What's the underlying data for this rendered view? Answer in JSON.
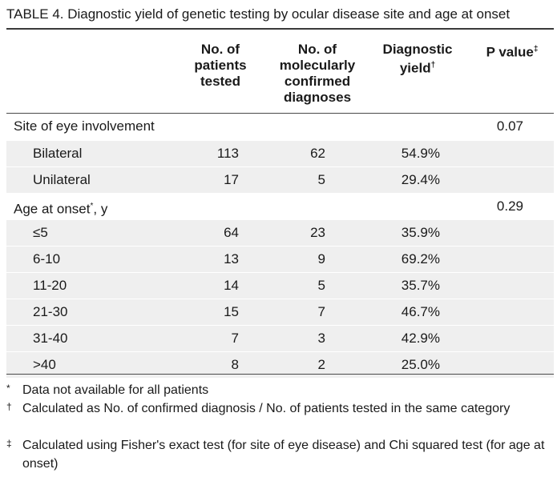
{
  "caption": "TABLE 4.  Diagnostic yield of genetic testing by ocular disease site and age at onset",
  "headers": {
    "col1": [
      "No. of",
      "patients",
      "tested"
    ],
    "col2": [
      "No. of",
      "molecularly",
      "confirmed",
      "diagnoses"
    ],
    "col3_line1": "Diagnostic",
    "col3_line2": "yield",
    "col3_mark": "†",
    "col4": "P value",
    "col4_mark": "‡"
  },
  "rows": [
    {
      "label": "Site of eye involvement",
      "tested": "",
      "confirmed": "",
      "yield": "",
      "p": "0.07",
      "indent": false,
      "shade": false
    },
    {
      "label": "Bilateral",
      "tested": "113",
      "confirmed": "62",
      "yield": "54.9%",
      "p": "",
      "indent": true,
      "shade": true
    },
    {
      "label": "Unilateral",
      "tested": "17",
      "confirmed": "5",
      "yield": "29.4%",
      "p": "",
      "indent": true,
      "shade": true
    },
    {
      "label": "Age at onset",
      "label_mark": "*",
      "label_tail": ", y",
      "tested": "",
      "confirmed": "",
      "yield": "",
      "p": "0.29",
      "indent": false,
      "shade": false
    },
    {
      "label": "≤5",
      "tested": "64",
      "confirmed": "23",
      "yield": "35.9%",
      "p": "",
      "indent": true,
      "shade": true
    },
    {
      "label": "6-10",
      "tested": "13",
      "confirmed": "9",
      "yield": "69.2%",
      "p": "",
      "indent": true,
      "shade": true
    },
    {
      "label": "11-20",
      "tested": "14",
      "confirmed": "5",
      "yield": "35.7%",
      "p": "",
      "indent": true,
      "shade": true
    },
    {
      "label": "21-30",
      "tested": "15",
      "confirmed": "7",
      "yield": "46.7%",
      "p": "",
      "indent": true,
      "shade": true
    },
    {
      "label": "31-40",
      "tested": "7",
      "confirmed": "3",
      "yield": "42.9%",
      "p": "",
      "indent": true,
      "shade": true
    },
    {
      "label": ">40",
      "tested": "8",
      "confirmed": "2",
      "yield": "25.0%",
      "p": "",
      "indent": true,
      "shade": true
    }
  ],
  "footnotes": [
    {
      "mark": "*",
      "text": "Data not available for all patients"
    },
    {
      "mark": "†",
      "text": "Calculated as No. of confirmed diagnosis / No. of patients tested in the same category"
    },
    {
      "mark": "‡",
      "text": "Calculated using Fisher's exact test (for site of eye disease) and Chi squared test (for age at onset)"
    }
  ]
}
